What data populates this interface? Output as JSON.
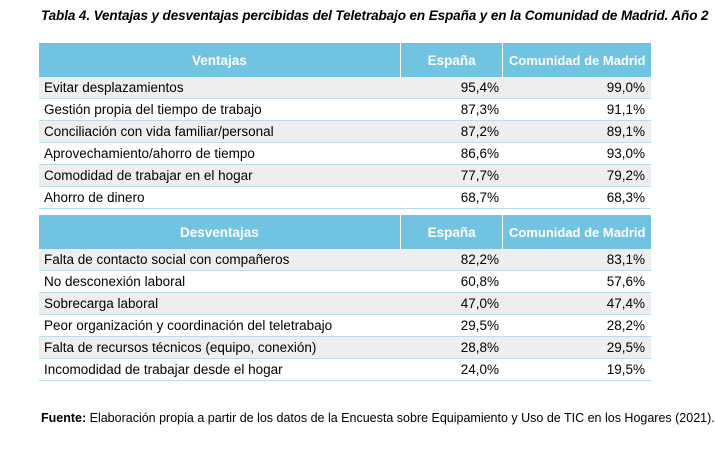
{
  "title": "Tabla 4. Ventajas y desventajas percibidas del Teletrabajo en España y en la Comunidad de Madrid. Año 2",
  "advantages": {
    "header": [
      "Ventajas",
      "España",
      "Comunidad de Madrid"
    ],
    "rows": [
      [
        "Evitar desplazamientos",
        "95,4%",
        "99,0%"
      ],
      [
        "Gestión propia del tiempo de trabajo",
        "87,3%",
        "91,1%"
      ],
      [
        "Conciliación con vida familiar/personal",
        "87,2%",
        "89,1%"
      ],
      [
        "Aprovechamiento/ahorro de tiempo",
        "86,6%",
        "93,0%"
      ],
      [
        "Comodidad de trabajar en el hogar",
        "77,7%",
        "79,2%"
      ],
      [
        "Ahorro de dinero",
        "68,7%",
        "68,3%"
      ]
    ]
  },
  "disadvantages": {
    "header": [
      "Desventajas",
      "España",
      "Comunidad de Madrid"
    ],
    "rows": [
      [
        "Falta de contacto social con compañeros",
        "82,2%",
        "83,1%"
      ],
      [
        "No desconexión laboral",
        "60,8%",
        "57,6%"
      ],
      [
        "Sobrecarga laboral",
        "47,0%",
        "47,4%"
      ],
      [
        "Peor organización y coordinación del teletrabajo",
        "29,5%",
        "28,2%"
      ],
      [
        "Falta de recursos técnicos (equipo, conexión)",
        "28,8%",
        "29,5%"
      ],
      [
        "Incomodidad de trabajar desde el hogar",
        "24,0%",
        "19,5%"
      ]
    ]
  },
  "source": {
    "label": "Fuente:",
    "text": " Elaboración propia a partir de los datos de la Encuesta sobre Equipamiento y Uso de TIC en los Hogares (2021)."
  }
}
